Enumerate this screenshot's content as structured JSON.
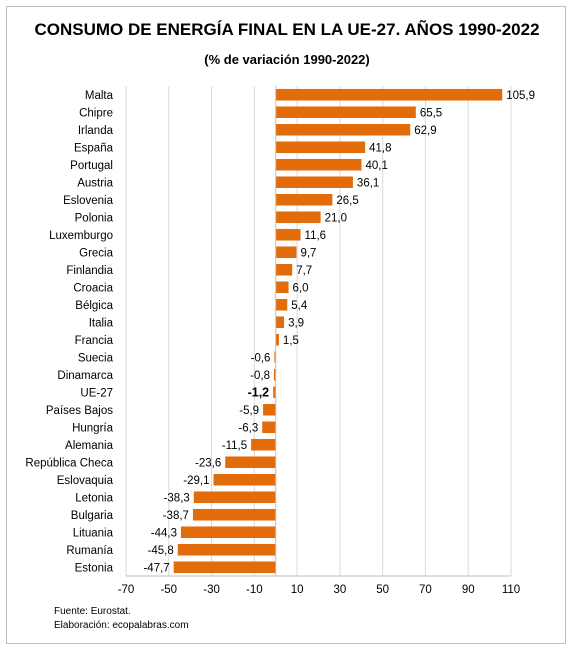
{
  "chart_data": {
    "type": "bar",
    "orientation": "horizontal",
    "title": "CONSUMO DE ENERGÍA FINAL EN LA UE-27. AÑOS 1990-2022",
    "subtitle": "(% de variación 1990-2022)",
    "categories": [
      "Malta",
      "Chipre",
      "Irlanda",
      "España",
      "Portugal",
      "Austria",
      "Eslovenia",
      "Polonia",
      "Luxemburgo",
      "Grecia",
      "Finlandia",
      "Croacia",
      "Bélgica",
      "Italia",
      "Francia",
      "Suecia",
      "Dinamarca",
      "UE-27",
      "Países Bajos",
      "Hungría",
      "Alemania",
      "República Checa",
      "Eslovaquia",
      "Letonia",
      "Bulgaria",
      "Lituania",
      "Rumanía",
      "Estonia"
    ],
    "values": [
      105.9,
      65.5,
      62.9,
      41.8,
      40.1,
      36.1,
      26.5,
      21.0,
      11.6,
      9.7,
      7.7,
      6.0,
      5.4,
      3.9,
      1.5,
      -0.6,
      -0.8,
      -1.2,
      -5.9,
      -6.3,
      -11.5,
      -23.6,
      -29.1,
      -38.3,
      -38.7,
      -44.3,
      -45.8,
      -47.7
    ],
    "value_labels": [
      "105,9",
      "65,5",
      "62,9",
      "41,8",
      "40,1",
      "36,1",
      "26,5",
      "21,0",
      "11,6",
      "9,7",
      "7,7",
      "6,0",
      "5,4",
      "3,9",
      "1,5",
      "-0,6",
      "-0,8",
      "-1,2",
      "-5,9",
      "-6,3",
      "-11,5",
      "-23,6",
      "-29,1",
      "-38,3",
      "-38,7",
      "-44,3",
      "-45,8",
      "-47,7"
    ],
    "highlight_category": "UE-27",
    "xlim": [
      -70,
      110
    ],
    "xticks": [
      -70,
      -50,
      -30,
      -10,
      10,
      30,
      50,
      70,
      90,
      110
    ],
    "xtick_labels": [
      "-70",
      "-50",
      "-30",
      "-10",
      "10",
      "30",
      "50",
      "70",
      "90",
      "110"
    ],
    "bar_color": "#E36C0A",
    "grid": true,
    "legend": "none"
  },
  "footer": {
    "source": "Fuente: Eurostat.",
    "author": "Elaboración: ecopalabras.com"
  }
}
